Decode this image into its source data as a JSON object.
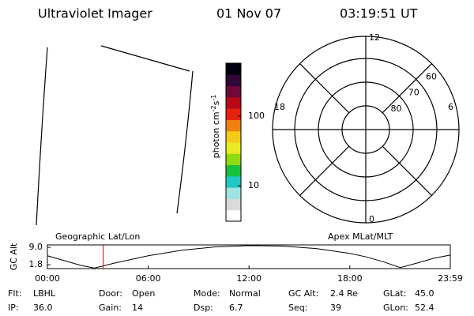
{
  "header": {
    "title": "Ultraviolet Imager",
    "date": "01 Nov 07",
    "time": "03:19:51 UT"
  },
  "colorbar": {
    "label_parts": [
      "photon cm",
      "-2",
      "s",
      "-1"
    ],
    "log": true,
    "lim": [
      3.1,
      575
    ],
    "ticks": [
      10,
      100
    ],
    "colors": [
      "#ffffff",
      "#d9d9d9",
      "#9fe3e3",
      "#22c7c7",
      "#18c040",
      "#8edc10",
      "#e8ec20",
      "#f8c818",
      "#f08010",
      "#e82010",
      "#b80818",
      "#700838",
      "#300838",
      "#000010"
    ]
  },
  "polar": {
    "ring_lats": [
      60,
      70,
      80
    ],
    "mlt_labels": {
      "top": "12",
      "left": "18",
      "right": "6",
      "bottom": "0"
    }
  },
  "chart_data": {
    "type": "line",
    "y_label": "GC Alt",
    "left_label": "Geographic Lat/Lon",
    "right_label": "Apex MLat/MLT",
    "x": [
      0,
      1,
      2,
      2.8,
      4,
      6,
      8,
      10,
      12,
      14,
      16,
      18,
      19,
      20,
      21,
      22,
      23,
      23.98
    ],
    "values": [
      5.5,
      3.5,
      1.5,
      0.4,
      2.5,
      5.5,
      7.8,
      9.2,
      9.7,
      9.5,
      8.5,
      6.5,
      5.0,
      3.0,
      0.6,
      2.5,
      4.5,
      5.8
    ],
    "color": "#000000",
    "marker_x": 3.33,
    "marker_color": "#cc0000",
    "xlim": [
      0,
      23.98
    ],
    "ylim": [
      0.2,
      10
    ],
    "xticks": [
      {
        "value": 0,
        "label": "00:00"
      },
      {
        "value": 6,
        "label": "06:00"
      },
      {
        "value": 12,
        "label": "12:00"
      },
      {
        "value": 18,
        "label": "18:00"
      },
      {
        "value": 23.98,
        "label": "23:59"
      }
    ],
    "yticks": [
      {
        "value": 9.0,
        "label": "9.0"
      },
      {
        "value": 1.8,
        "label": "1.8"
      }
    ]
  },
  "footer": {
    "rows": [
      [
        {
          "label": "Flt:",
          "value": "LBHL"
        },
        {
          "label": "Door:",
          "value": "Open"
        },
        {
          "label": "Mode:",
          "value": "Normal"
        },
        {
          "label": "GC Alt:",
          "value": "2.4 Re"
        },
        {
          "label": "GLat:",
          "value": "45.0"
        }
      ],
      [
        {
          "label": "IP:",
          "value": "36.0"
        },
        {
          "label": "Gain:",
          "value": "14"
        },
        {
          "label": "Dsp:",
          "value": "6.7"
        },
        {
          "label": "Seq:",
          "value": "39"
        },
        {
          "label": "GLon:",
          "value": "52.4"
        }
      ]
    ]
  }
}
